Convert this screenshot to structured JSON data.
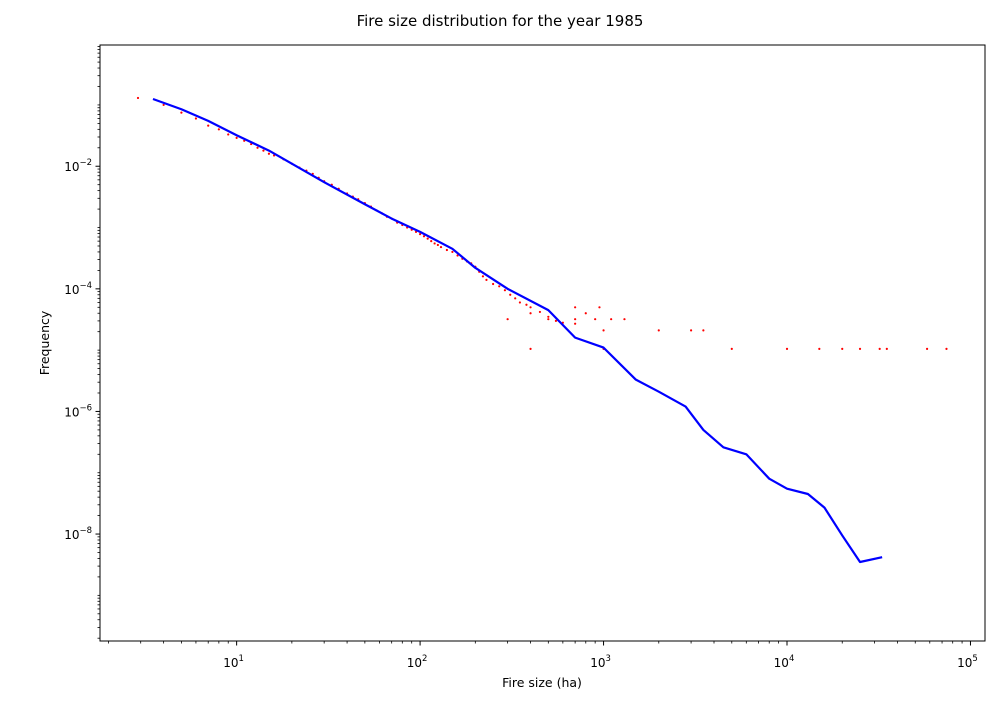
{
  "colors": {
    "scatter": "#ff0000",
    "line": "#0000ff",
    "axis": "#000000",
    "background": "#ffffff"
  },
  "chart_data": {
    "type": "scatter",
    "title": "Fire size distribution for the year 1985",
    "xlabel": "Fire size (ha)",
    "ylabel": "Frequency",
    "xscale": "log",
    "yscale": "log",
    "xlim": [
      1.8,
      120000
    ],
    "ylim": [
      1.8e-10,
      0.95
    ],
    "grid": false,
    "legend": "none",
    "xticks": [
      {
        "value": 10,
        "base": "10",
        "exp": "1"
      },
      {
        "value": 100,
        "base": "10",
        "exp": "2"
      },
      {
        "value": 1000,
        "base": "10",
        "exp": "3"
      },
      {
        "value": 10000,
        "base": "10",
        "exp": "4"
      },
      {
        "value": 100000,
        "base": "10",
        "exp": "5"
      }
    ],
    "yticks": [
      {
        "value": 1e-08,
        "base": "10",
        "exp": "−8"
      },
      {
        "value": 1e-06,
        "base": "10",
        "exp": "−6"
      },
      {
        "value": 0.0001,
        "base": "10",
        "exp": "−4"
      },
      {
        "value": 0.01,
        "base": "10",
        "exp": "−2"
      }
    ],
    "series": [
      {
        "kind": "line",
        "points": [
          [
            3.5,
            0.125
          ],
          [
            5,
            0.085
          ],
          [
            7,
            0.055
          ],
          [
            10,
            0.032
          ],
          [
            15,
            0.018
          ],
          [
            20,
            0.011
          ],
          [
            30,
            0.0055
          ],
          [
            50,
            0.0024
          ],
          [
            70,
            0.0014
          ],
          [
            100,
            0.00085
          ],
          [
            150,
            0.00045
          ],
          [
            200,
            0.00022
          ],
          [
            300,
            0.0001
          ],
          [
            500,
            4.5e-05
          ],
          [
            700,
            1.6e-05
          ],
          [
            1000,
            1.1e-05
          ],
          [
            1500,
            3.3e-06
          ],
          [
            2000,
            2.1e-06
          ],
          [
            2800,
            1.2e-06
          ],
          [
            3500,
            5e-07
          ],
          [
            4500,
            2.6e-07
          ],
          [
            6000,
            2e-07
          ],
          [
            8000,
            8e-08
          ],
          [
            10000,
            5.5e-08
          ],
          [
            13000,
            4.5e-08
          ],
          [
            16000,
            2.7e-08
          ],
          [
            20000,
            9.5e-09
          ],
          [
            25000,
            3.5e-09
          ],
          [
            33000,
            4.2e-09
          ]
        ]
      },
      {
        "kind": "scatter",
        "points": [
          [
            2.9,
            0.13
          ],
          [
            4,
            0.1
          ],
          [
            5,
            0.075
          ],
          [
            6,
            0.06
          ],
          [
            7,
            0.046
          ],
          [
            8,
            0.04
          ],
          [
            9,
            0.033
          ],
          [
            10,
            0.029
          ],
          [
            11,
            0.026
          ],
          [
            12,
            0.023
          ],
          [
            13,
            0.02
          ],
          [
            14,
            0.018
          ],
          [
            15,
            0.016
          ],
          [
            16,
            0.015
          ],
          [
            18,
            0.013
          ],
          [
            20,
            0.011
          ],
          [
            22,
            0.0095
          ],
          [
            24,
            0.0085
          ],
          [
            26,
            0.0075
          ],
          [
            28,
            0.0065
          ],
          [
            30,
            0.0057
          ],
          [
            33,
            0.005
          ],
          [
            36,
            0.0043
          ],
          [
            40,
            0.0036
          ],
          [
            43,
            0.0032
          ],
          [
            46,
            0.0029
          ],
          [
            50,
            0.0025
          ],
          [
            54,
            0.0022
          ],
          [
            58,
            0.0019
          ],
          [
            62,
            0.0017
          ],
          [
            66,
            0.0015
          ],
          [
            70,
            0.0014
          ],
          [
            75,
            0.0012
          ],
          [
            80,
            0.0011
          ],
          [
            85,
            0.001
          ],
          [
            90,
            0.00092
          ],
          [
            95,
            0.00085
          ],
          [
            100,
            0.00078
          ],
          [
            105,
            0.00072
          ],
          [
            110,
            0.00066
          ],
          [
            115,
            0.0006
          ],
          [
            120,
            0.00055
          ],
          [
            125,
            0.00052
          ],
          [
            130,
            0.00048
          ],
          [
            140,
            0.00043
          ],
          [
            150,
            0.0004
          ],
          [
            160,
            0.00035
          ],
          [
            170,
            0.00031
          ],
          [
            180,
            0.00028
          ],
          [
            190,
            0.00026
          ],
          [
            200,
            0.00023
          ],
          [
            210,
            0.00019
          ],
          [
            220,
            0.00016
          ],
          [
            230,
            0.00014
          ],
          [
            250,
            0.00012
          ],
          [
            270,
            0.00011
          ],
          [
            290,
            9.5e-05
          ],
          [
            310,
            8e-05
          ],
          [
            330,
            7e-05
          ],
          [
            350,
            6e-05
          ],
          [
            380,
            5.5e-05
          ],
          [
            400,
            5e-05
          ],
          [
            450,
            4.2e-05
          ],
          [
            500,
            3.5e-05
          ],
          [
            550,
            3e-05
          ],
          [
            600,
            2.8e-05
          ],
          [
            700,
            2.7e-05
          ],
          [
            1000,
            2.1e-05
          ],
          [
            2000,
            2.1e-05
          ],
          [
            3000,
            2.1e-05
          ],
          [
            3500,
            2.1e-05
          ],
          [
            400,
            1.05e-05
          ],
          [
            1000,
            1.05e-05
          ],
          [
            5000,
            1.05e-05
          ],
          [
            10000,
            1.05e-05
          ],
          [
            15000,
            1.05e-05
          ],
          [
            20000,
            1.05e-05
          ],
          [
            25000,
            1.05e-05
          ],
          [
            32000,
            1.05e-05
          ],
          [
            35000,
            1.05e-05
          ],
          [
            58000,
            1.05e-05
          ],
          [
            74000,
            1.05e-05
          ],
          [
            300,
            3.2e-05
          ],
          [
            500,
            3.2e-05
          ],
          [
            700,
            3.2e-05
          ],
          [
            900,
            3.2e-05
          ],
          [
            1100,
            3.2e-05
          ],
          [
            1300,
            3.2e-05
          ],
          [
            400,
            4e-05
          ],
          [
            800,
            4e-05
          ],
          [
            950,
            5e-05
          ],
          [
            700,
            5e-05
          ]
        ]
      }
    ]
  }
}
